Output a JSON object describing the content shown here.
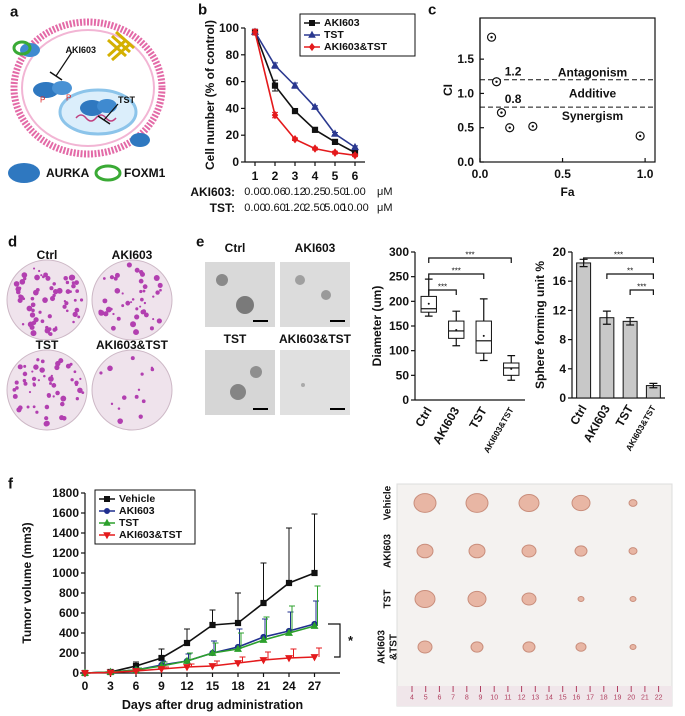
{
  "panels": [
    "a",
    "b",
    "c",
    "d",
    "e",
    "f"
  ],
  "diagram": {
    "labels": [
      "AKI603",
      "TST"
    ],
    "phospho": [
      "P",
      "P"
    ],
    "legend": [
      "AURKA",
      "FOXM1"
    ]
  },
  "photos": {
    "colonies": [
      "Ctrl",
      "AKI603",
      "TST",
      "AKI603&TST"
    ],
    "spheres": [
      "Ctrl",
      "AKI603",
      "TST",
      "AKI603&TST"
    ],
    "tumors": [
      [
        "Vehicle"
      ],
      [
        "AKI603"
      ],
      [
        "TST"
      ],
      [
        "AKI603",
        "&TST"
      ]
    ],
    "ruler": [
      "4",
      "5",
      "6",
      "7",
      "8",
      "9",
      "10",
      "11",
      "12",
      "13",
      "14",
      "15",
      "16",
      "17",
      "18",
      "19",
      "20",
      "21",
      "22"
    ]
  },
  "chart_data": [
    {
      "type": "line",
      "ylabel": "Cell number (% of control)",
      "categories": [
        "1",
        "2",
        "3",
        "4",
        "5",
        "6"
      ],
      "series": [
        {
          "name": "AKI603",
          "color": "#111111",
          "marker": "square",
          "values": [
            97,
            57,
            38,
            24,
            15,
            7
          ],
          "errors": [
            2,
            4,
            1,
            1,
            1,
            1
          ]
        },
        {
          "name": "TST",
          "color": "#2b3990",
          "marker": "triangle",
          "values": [
            97,
            72,
            57,
            41,
            21,
            11
          ],
          "errors": [
            2,
            2,
            2,
            1,
            1,
            1
          ]
        },
        {
          "name": "AKI603&TST",
          "color": "#e41a1c",
          "marker": "diamond",
          "values": [
            97,
            35,
            17,
            10,
            7,
            5
          ],
          "errors": [
            2,
            2,
            1,
            1,
            1,
            1
          ]
        }
      ],
      "ylim": [
        0,
        100
      ],
      "yticks": [
        0,
        20,
        40,
        60,
        80,
        100
      ],
      "dose_table": [
        {
          "label": "AKI603:",
          "values": [
            "0.00",
            "0.06",
            "0.12",
            "0.25",
            "0.50",
            "1.00"
          ],
          "unit": "μM"
        },
        {
          "label": "TST:",
          "values": [
            "0.00",
            "0.60",
            "1.20",
            "2.50",
            "5.00",
            "10.00"
          ],
          "unit": "μM"
        }
      ]
    },
    {
      "type": "scatter",
      "xlabel": "Fa",
      "ylabel": "CI",
      "x": [
        0.07,
        0.1,
        0.13,
        0.18,
        0.32,
        0.97
      ],
      "values": [
        1.82,
        1.17,
        0.72,
        0.5,
        0.52,
        0.38
      ],
      "xlim": [
        0,
        1.06
      ],
      "ylim": [
        0,
        2.1
      ],
      "xticks": [
        {
          "value": 0,
          "label": "0.0"
        },
        {
          "value": 0.5,
          "label": "0.5"
        },
        {
          "value": 1,
          "label": "1.0"
        }
      ],
      "yticks": [
        {
          "value": 0,
          "label": "0.0"
        },
        {
          "value": 0.5,
          "label": "0.5"
        },
        {
          "value": 1,
          "label": "1.0"
        },
        {
          "value": 1.5,
          "label": "1.5"
        }
      ],
      "reference_lines": [
        {
          "value": 1.2,
          "label": "1.2",
          "region": "Antagonism"
        },
        {
          "value": 0.8,
          "label": "0.8",
          "region": "Synergism"
        }
      ],
      "middle_region": "Additive"
    },
    {
      "type": "box",
      "ylabel": "Diameter (um)",
      "categories": [
        "Ctrl",
        "AKI603",
        "TST",
        "AKI603&TST"
      ],
      "boxes": [
        {
          "min": 170,
          "q1": 178,
          "median": 185,
          "q3": 210,
          "max": 245,
          "mean": 195
        },
        {
          "min": 110,
          "q1": 125,
          "median": 140,
          "q3": 160,
          "max": 180,
          "mean": 142
        },
        {
          "min": 80,
          "q1": 95,
          "median": 120,
          "q3": 160,
          "max": 205,
          "mean": 130
        },
        {
          "min": 40,
          "q1": 50,
          "median": 65,
          "q3": 75,
          "max": 90,
          "mean": 63
        }
      ],
      "ylim": [
        0,
        300
      ],
      "yticks": [
        0,
        50,
        100,
        150,
        200,
        250,
        300
      ],
      "significance": [
        {
          "pair": [
            "Ctrl",
            "AKI603&TST"
          ],
          "label": "***"
        },
        {
          "pair": [
            "Ctrl",
            "TST"
          ],
          "label": "***"
        },
        {
          "pair": [
            "Ctrl",
            "AKI603"
          ],
          "label": "***"
        }
      ]
    },
    {
      "type": "bar",
      "ylabel": "Sphere forming unit %",
      "categories": [
        "Ctrl",
        "AKI603",
        "TST",
        "AKI603&TST"
      ],
      "values": [
        18.5,
        11,
        10.5,
        1.7
      ],
      "errors": [
        0.5,
        0.9,
        0.5,
        0.3
      ],
      "color": "#c8c8c8",
      "ylim": [
        0,
        20
      ],
      "yticks": [
        0,
        4,
        8,
        12,
        16,
        20
      ],
      "significance": [
        {
          "pair": [
            "Ctrl",
            "AKI603&TST"
          ],
          "label": "***"
        },
        {
          "pair": [
            "AKI603",
            "AKI603&TST"
          ],
          "label": "**"
        },
        {
          "pair": [
            "TST",
            "AKI603&TST"
          ],
          "label": "***"
        }
      ]
    },
    {
      "type": "line",
      "xlabel": "Days after drug administration",
      "ylabel": "Tumor volume (mm3)",
      "x": [
        0,
        3,
        6,
        9,
        12,
        15,
        18,
        21,
        24,
        27
      ],
      "error_bars": "upper",
      "series": [
        {
          "name": "Vehicle",
          "color": "#111111",
          "marker": "square",
          "values": [
            0,
            10,
            70,
            150,
            300,
            480,
            500,
            700,
            900,
            1000
          ],
          "errors": [
            0,
            10,
            40,
            90,
            140,
            150,
            300,
            400,
            550,
            590
          ]
        },
        {
          "name": "AKI603",
          "color": "#1f2f8f",
          "marker": "circle",
          "values": [
            0,
            10,
            30,
            80,
            120,
            200,
            260,
            360,
            420,
            490
          ],
          "errors": [
            0,
            5,
            20,
            40,
            70,
            120,
            180,
            180,
            190,
            230
          ]
        },
        {
          "name": "TST",
          "color": "#2ca02c",
          "marker": "triangle",
          "values": [
            0,
            10,
            30,
            70,
            120,
            200,
            240,
            330,
            400,
            470
          ],
          "errors": [
            0,
            5,
            20,
            40,
            80,
            100,
            160,
            230,
            270,
            400
          ]
        },
        {
          "name": "AKI603&TST",
          "color": "#e41a1c",
          "marker": "triangle-down",
          "values": [
            0,
            5,
            20,
            40,
            60,
            70,
            100,
            130,
            150,
            160
          ],
          "errors": [
            0,
            5,
            10,
            20,
            30,
            50,
            60,
            80,
            90,
            90
          ]
        }
      ],
      "xlim": [
        0,
        30
      ],
      "xticks": [
        0,
        3,
        6,
        9,
        12,
        15,
        18,
        21,
        24,
        27
      ],
      "ylim": [
        0,
        1800
      ],
      "yticks": [
        0,
        200,
        400,
        600,
        800,
        1000,
        1200,
        1400,
        1600,
        1800
      ],
      "annotation": "*"
    }
  ]
}
